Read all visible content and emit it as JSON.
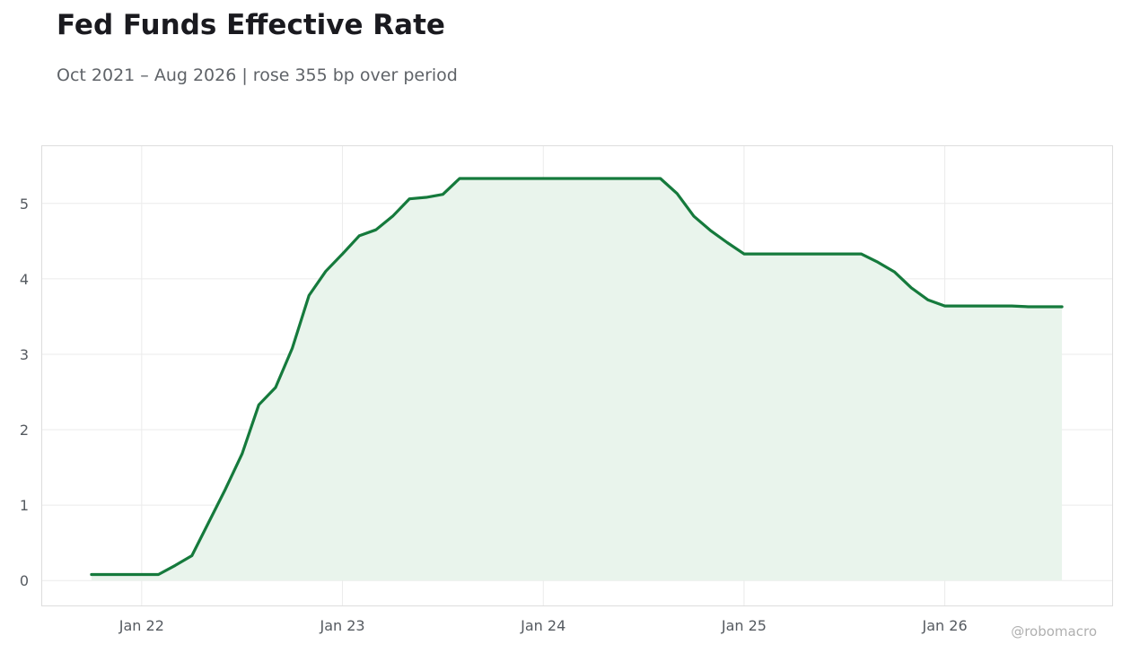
{
  "chart_data": {
    "type": "area",
    "title": "Fed Funds Effective Rate",
    "subtitle": "Oct 2021 – Aug 2026 | rose 355 bp over period",
    "watermark": "@robomacro",
    "xlabel": "",
    "ylabel": "",
    "ylim": [
      -0.33,
      5.77
    ],
    "yticks": [
      0,
      1,
      2,
      3,
      4,
      5
    ],
    "xticks": [
      {
        "label": "Jan 22",
        "month": "2022-01"
      },
      {
        "label": "Jan 23",
        "month": "2023-01"
      },
      {
        "label": "Jan 24",
        "month": "2024-01"
      },
      {
        "label": "Jan 25",
        "month": "2025-01"
      },
      {
        "label": "Jan 26",
        "month": "2026-01"
      }
    ],
    "x_range": [
      "2021-07",
      "2026-11"
    ],
    "grid": true,
    "colors": {
      "line": "#157a3c",
      "fill": "#e9f4ec",
      "grid": "#ebebeb",
      "frame": "#dddddd"
    },
    "series": [
      {
        "x": [
          "2021-10",
          "2021-11",
          "2021-12",
          "2022-01",
          "2022-02",
          "2022-03",
          "2022-04",
          "2022-05",
          "2022-06",
          "2022-07",
          "2022-08",
          "2022-09",
          "2022-10",
          "2022-11",
          "2022-12",
          "2023-01",
          "2023-02",
          "2023-03",
          "2023-04",
          "2023-05",
          "2023-06",
          "2023-07",
          "2023-08",
          "2023-09",
          "2023-10",
          "2023-11",
          "2023-12",
          "2024-01",
          "2024-02",
          "2024-03",
          "2024-04",
          "2024-05",
          "2024-06",
          "2024-07",
          "2024-08",
          "2024-09",
          "2024-10",
          "2024-11",
          "2024-12",
          "2025-01",
          "2025-02",
          "2025-03",
          "2025-04",
          "2025-05",
          "2025-06",
          "2025-07",
          "2025-08",
          "2025-09",
          "2025-10",
          "2025-11",
          "2025-12",
          "2026-01",
          "2026-02",
          "2026-03",
          "2026-04",
          "2026-05",
          "2026-06",
          "2026-07",
          "2026-08"
        ],
        "values": [
          0.08,
          0.08,
          0.08,
          0.08,
          0.08,
          0.2,
          0.33,
          0.77,
          1.21,
          1.68,
          2.33,
          2.56,
          3.08,
          3.78,
          4.1,
          4.33,
          4.57,
          4.65,
          4.83,
          5.06,
          5.08,
          5.12,
          5.33,
          5.33,
          5.33,
          5.33,
          5.33,
          5.33,
          5.33,
          5.33,
          5.33,
          5.33,
          5.33,
          5.33,
          5.33,
          5.13,
          4.83,
          4.64,
          4.48,
          4.33,
          4.33,
          4.33,
          4.33,
          4.33,
          4.33,
          4.33,
          4.33,
          4.22,
          4.09,
          3.88,
          3.72,
          3.64,
          3.64,
          3.64,
          3.64,
          3.64,
          3.63,
          3.63,
          3.63
        ]
      }
    ]
  }
}
